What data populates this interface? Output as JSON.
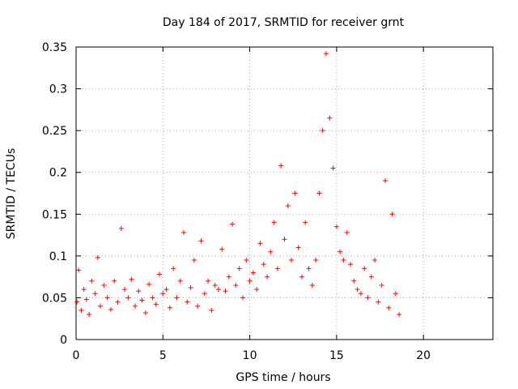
{
  "chart_data": {
    "type": "scatter",
    "title": "Day 184 of 2017, SRMTID for receiver grnt",
    "xlabel": "GPS time / hours",
    "ylabel": "SRMTID / TECUs",
    "xlim": [
      0,
      24
    ],
    "ylim": [
      0,
      0.35
    ],
    "x_ticks": [
      0,
      5,
      10,
      15,
      20
    ],
    "x_tick_labels": [
      "0",
      "5",
      "10",
      "15",
      "20"
    ],
    "y_ticks": [
      0,
      0.05,
      0.1,
      0.15,
      0.2,
      0.25,
      0.3,
      0.35
    ],
    "y_tick_labels": [
      "0",
      "0.05",
      "0.1",
      "0.15",
      "0.2",
      "0.25",
      "0.3",
      "0.35"
    ],
    "grid": true,
    "marker": "+",
    "series": [
      {
        "name": "SRMTID",
        "color": "#ff0000",
        "x": [
          0.05,
          0.15,
          0.3,
          0.45,
          0.6,
          0.75,
          0.9,
          1.1,
          1.25,
          1.4,
          1.6,
          1.8,
          2.0,
          2.2,
          2.4,
          2.6,
          2.8,
          3.0,
          3.2,
          3.4,
          3.6,
          3.8,
          4.0,
          4.2,
          4.4,
          4.6,
          4.8,
          5.0,
          5.2,
          5.4,
          5.6,
          5.8,
          6.0,
          6.2,
          6.4,
          6.6,
          6.8,
          7.0,
          7.2,
          7.4,
          7.6,
          7.8,
          8.0,
          8.2,
          8.4,
          8.6,
          8.8,
          9.0,
          9.2,
          9.4,
          9.6,
          9.8,
          10.0,
          10.2,
          10.4,
          10.6,
          10.8,
          11.0,
          11.2,
          11.4,
          11.6,
          11.8,
          12.0,
          12.2,
          12.4,
          12.6,
          12.8,
          13.0,
          13.2,
          13.4,
          13.6,
          13.8,
          14.0,
          14.2,
          14.4,
          14.6,
          14.8,
          15.0,
          15.2,
          15.4,
          15.6,
          15.8,
          16.0,
          16.2,
          16.4,
          16.6,
          16.8,
          17.0,
          17.2,
          17.4,
          17.6,
          17.8,
          18.0,
          18.2,
          18.4,
          18.6
        ],
        "y": [
          0.045,
          0.083,
          0.035,
          0.06,
          0.048,
          0.03,
          0.07,
          0.055,
          0.098,
          0.04,
          0.065,
          0.05,
          0.036,
          0.07,
          0.045,
          0.133,
          0.06,
          0.05,
          0.072,
          0.04,
          0.058,
          0.047,
          0.032,
          0.066,
          0.05,
          0.042,
          0.078,
          0.055,
          0.06,
          0.038,
          0.085,
          0.05,
          0.07,
          0.128,
          0.045,
          0.062,
          0.095,
          0.04,
          0.118,
          0.055,
          0.07,
          0.035,
          0.065,
          0.06,
          0.108,
          0.058,
          0.075,
          0.138,
          0.065,
          0.085,
          0.05,
          0.095,
          0.07,
          0.08,
          0.06,
          0.115,
          0.09,
          0.075,
          0.105,
          0.14,
          0.085,
          0.208,
          0.12,
          0.16,
          0.095,
          0.175,
          0.11,
          0.075,
          0.14,
          0.085,
          0.065,
          0.095,
          0.175,
          0.25,
          0.342,
          0.265,
          0.205,
          0.135,
          0.105,
          0.095,
          0.128,
          0.09,
          0.07,
          0.06,
          0.055,
          0.085,
          0.05,
          0.075,
          0.095,
          0.045,
          0.065,
          0.19,
          0.038,
          0.15,
          0.055,
          0.03
        ]
      }
    ]
  }
}
